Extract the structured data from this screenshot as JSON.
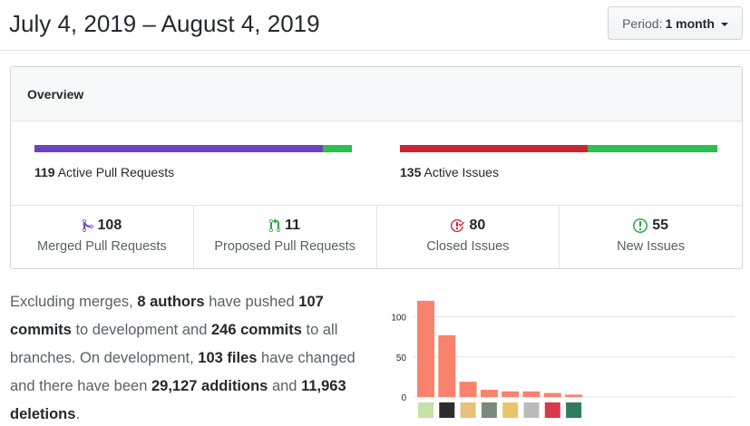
{
  "header": {
    "date_range": "July 4, 2019 – August 4, 2019",
    "period_label": "Period:",
    "period_value": "1 month"
  },
  "overview": {
    "title": "Overview",
    "pull_requests": {
      "count": "119",
      "label": "Active Pull Requests",
      "merged_fraction": 0.9076,
      "merged_color": "#6f42c1",
      "open_color": "#2cbe4e"
    },
    "issues": {
      "count": "135",
      "label": "Active Issues",
      "closed_fraction": 0.5926,
      "closed_color": "#cb2431",
      "new_color": "#2cbe4e"
    },
    "stats": [
      {
        "icon": "merge-icon",
        "value": "108",
        "label": "Merged Pull Requests",
        "color": "#6f42c1"
      },
      {
        "icon": "pull-request-icon",
        "value": "11",
        "label": "Proposed Pull Requests",
        "color": "#28a745"
      },
      {
        "icon": "issue-closed-icon",
        "value": "80",
        "label": "Closed Issues",
        "color": "#cb2431"
      },
      {
        "icon": "issue-opened-icon",
        "value": "55",
        "label": "New Issues",
        "color": "#28a745"
      }
    ]
  },
  "summary": {
    "p1": "Excluding merges, ",
    "authors": "8 authors",
    "p2": " have pushed ",
    "commits_dev": "107 commits",
    "p3": " to development and ",
    "commits_all": "246 commits",
    "p4": " to all branches. On development, ",
    "files": "103 files",
    "p5": " have changed and there have been ",
    "additions_num": "29,127",
    "additions_word": " additions",
    "p6": " and ",
    "deletions_num": "11,963",
    "deletions_word": " deletions",
    "p7": "."
  },
  "chart_data": {
    "type": "bar",
    "categories": [
      "author-1",
      "author-2",
      "author-3",
      "author-4",
      "author-5",
      "author-6",
      "author-7",
      "author-8"
    ],
    "values": [
      120,
      77,
      19,
      9,
      7,
      7,
      5,
      3
    ],
    "ylim": [
      0,
      130
    ],
    "yticks": [
      "0",
      "50",
      "100"
    ],
    "grid": true,
    "bar_color": "#f9826c",
    "avatar_colors": [
      "#c5e1a5",
      "#2d2d2d",
      "#e8c17a",
      "#7a8a7a",
      "#e9c46a",
      "#bbbbbb",
      "#d73a49",
      "#2e7d5b"
    ]
  }
}
